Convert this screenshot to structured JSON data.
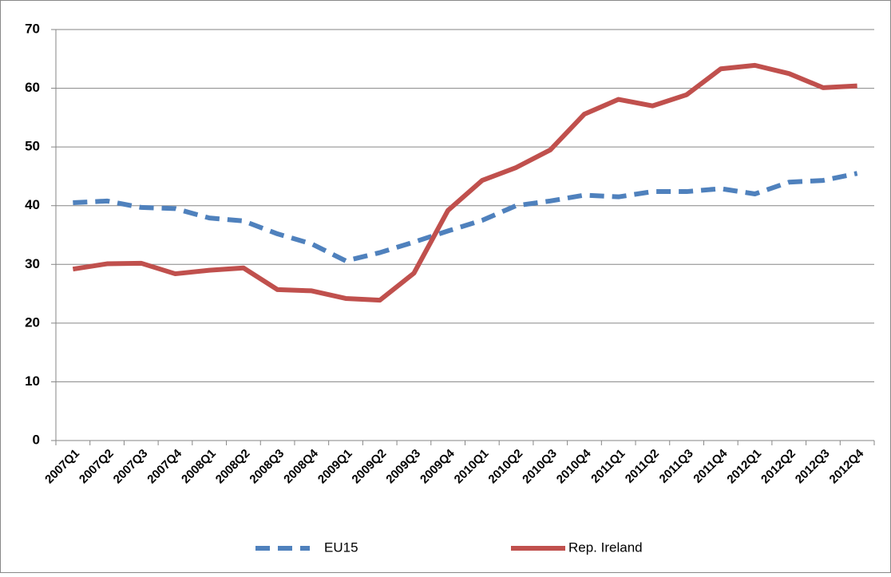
{
  "chart_data": {
    "type": "line",
    "categories": [
      "2007Q1",
      "2007Q2",
      "2007Q3",
      "2007Q4",
      "2008Q1",
      "2008Q2",
      "2008Q3",
      "2008Q4",
      "2009Q1",
      "2009Q2",
      "2009Q3",
      "2009Q4",
      "2010Q1",
      "2010Q2",
      "2010Q3",
      "2010Q4",
      "2011Q1",
      "2011Q2",
      "2011Q3",
      "2011Q4",
      "2012Q1",
      "2012Q2",
      "2012Q3",
      "2012Q4"
    ],
    "series": [
      {
        "name": "EU15",
        "color": "#4f81bd",
        "dashed": true,
        "values": [
          40.5,
          40.8,
          39.7,
          39.5,
          37.9,
          37.4,
          35.2,
          33.5,
          30.6,
          32.0,
          33.8,
          35.7,
          37.5,
          40.0,
          40.8,
          41.8,
          41.5,
          42.4,
          42.4,
          42.9,
          42.0,
          44.0,
          44.3,
          45.5
        ]
      },
      {
        "name": "Rep. Ireland",
        "color": "#c0504d",
        "dashed": false,
        "values": [
          29.2,
          30.1,
          30.2,
          28.4,
          29.0,
          29.4,
          25.7,
          25.5,
          24.2,
          23.9,
          28.5,
          39.2,
          44.3,
          46.5,
          49.5,
          55.6,
          58.1,
          57.0,
          58.9,
          63.3,
          63.9,
          62.5,
          60.1,
          60.4
        ]
      }
    ],
    "ylim": [
      0,
      70
    ],
    "yticks": [
      0,
      10,
      20,
      30,
      40,
      50,
      60,
      70
    ],
    "grid": true,
    "legend": "bottom"
  }
}
